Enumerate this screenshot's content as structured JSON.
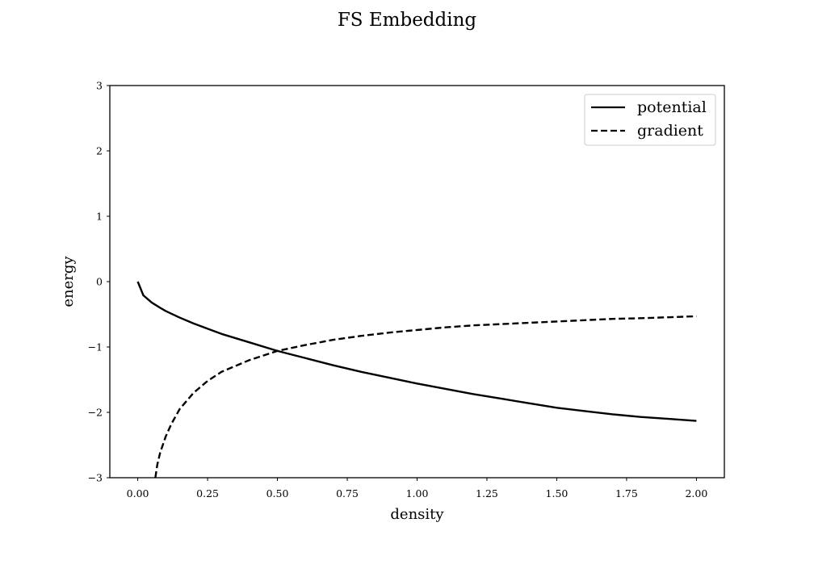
{
  "chart_data": {
    "type": "line",
    "title": "FS Embedding",
    "xlabel": "density",
    "ylabel": "energy",
    "xlim": [
      -0.1,
      2.1
    ],
    "ylim": [
      -3,
      3
    ],
    "xticks": [
      0.0,
      0.25,
      0.5,
      0.75,
      1.0,
      1.25,
      1.5,
      1.75,
      2.0
    ],
    "xtick_labels": [
      "0.00",
      "0.25",
      "0.50",
      "0.75",
      "1.00",
      "1.25",
      "1.50",
      "1.75",
      "2.00"
    ],
    "yticks": [
      -3,
      -2,
      -1,
      0,
      1,
      2,
      3
    ],
    "ytick_labels": [
      "−3",
      "−2",
      "−1",
      "0",
      "1",
      "2",
      "3"
    ],
    "grid": false,
    "legend_position": "top-right",
    "series": [
      {
        "name": "potential",
        "style": "solid",
        "color": "#000000",
        "x": [
          0.0,
          0.02,
          0.05,
          0.08,
          0.1,
          0.15,
          0.2,
          0.25,
          0.3,
          0.4,
          0.5,
          0.6,
          0.7,
          0.8,
          0.9,
          1.0,
          1.1,
          1.2,
          1.3,
          1.4,
          1.5,
          1.6,
          1.7,
          1.8,
          1.9,
          2.0
        ],
        "y": [
          0.0,
          -0.21,
          -0.32,
          -0.4,
          -0.45,
          -0.55,
          -0.64,
          -0.72,
          -0.8,
          -0.93,
          -1.06,
          -1.17,
          -1.28,
          -1.38,
          -1.47,
          -1.56,
          -1.64,
          -1.72,
          -1.79,
          -1.86,
          -1.93,
          -1.98,
          -2.03,
          -2.07,
          -2.1,
          -2.13
        ]
      },
      {
        "name": "gradient",
        "style": "dashed",
        "color": "#000000",
        "x": [
          0.063,
          0.07,
          0.08,
          0.1,
          0.12,
          0.15,
          0.2,
          0.25,
          0.3,
          0.4,
          0.5,
          0.6,
          0.7,
          0.8,
          0.9,
          1.0,
          1.1,
          1.2,
          1.3,
          1.4,
          1.5,
          1.6,
          1.7,
          1.8,
          1.9,
          2.0
        ],
        "y": [
          -3.0,
          -2.8,
          -2.62,
          -2.37,
          -2.18,
          -1.95,
          -1.7,
          -1.52,
          -1.38,
          -1.2,
          -1.06,
          -0.97,
          -0.89,
          -0.83,
          -0.78,
          -0.74,
          -0.7,
          -0.67,
          -0.65,
          -0.63,
          -0.61,
          -0.59,
          -0.57,
          -0.56,
          -0.545,
          -0.53
        ]
      }
    ]
  }
}
